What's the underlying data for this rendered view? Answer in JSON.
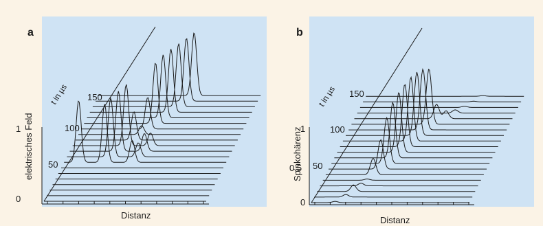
{
  "chart_data": [
    {
      "type": "line",
      "panel_label": "a",
      "xlabel": "Distanz",
      "ylabel": "elektrisches Feld",
      "depth_label": "t in µs",
      "y_ticks": [
        "0",
        "1"
      ],
      "t_ticks": [
        {
          "label": "50",
          "value": 50
        },
        {
          "label": "100",
          "value": 100
        },
        {
          "label": "150",
          "value": 150
        }
      ],
      "series": [
        {
          "t": 0,
          "peaks": [
            {
              "pos": 0.18,
              "amp": 0.0
            }
          ]
        },
        {
          "t": 10,
          "peaks": [
            {
              "pos": 0.18,
              "amp": 0.0
            }
          ]
        },
        {
          "t": 20,
          "peaks": [
            {
              "pos": 0.17,
              "amp": 0.0
            }
          ]
        },
        {
          "t": 30,
          "peaks": [
            {
              "pos": 0.16,
              "amp": 0.0
            }
          ]
        },
        {
          "t": 40,
          "peaks": [
            {
              "pos": 0.15,
              "amp": 0.0
            }
          ]
        },
        {
          "t": 50,
          "peaks": [
            {
              "pos": 0.14,
              "amp": 0.0
            }
          ]
        },
        {
          "t": 60,
          "peaks": [
            {
              "pos": 0.13,
              "amp": 0.0
            }
          ]
        },
        {
          "t": 70,
          "peaks": [
            {
              "pos": 0.09,
              "amp": 0.98
            },
            {
              "pos": 0.25,
              "amp": 0.92
            },
            {
              "pos": 0.42,
              "amp": 0.35
            }
          ]
        },
        {
          "t": 80,
          "peaks": [
            {
              "pos": 0.27,
              "amp": 0.93
            },
            {
              "pos": 0.44,
              "amp": 0.22
            }
          ]
        },
        {
          "t": 90,
          "peaks": [
            {
              "pos": 0.3,
              "amp": 0.95
            },
            {
              "pos": 0.46,
              "amp": 0.28
            }
          ]
        },
        {
          "t": 100,
          "peaks": [
            {
              "pos": 0.33,
              "amp": 0.97
            },
            {
              "pos": 0.48,
              "amp": 0.2
            }
          ]
        },
        {
          "t": 110,
          "peaks": [
            {
              "pos": 0.36,
              "amp": 0.45
            }
          ]
        },
        {
          "t": 120,
          "peaks": [
            {
              "pos": 0.39,
              "amp": 0.14
            }
          ]
        },
        {
          "t": 130,
          "peaks": [
            {
              "pos": 0.41,
              "amp": 0.5
            }
          ]
        },
        {
          "t": 140,
          "peaks": [
            {
              "pos": 0.44,
              "amp": 0.96
            }
          ]
        },
        {
          "t": 150,
          "peaks": [
            {
              "pos": 0.47,
              "amp": 1.0
            }
          ]
        },
        {
          "t": 160,
          "peaks": [
            {
              "pos": 0.5,
              "amp": 1.0
            }
          ]
        },
        {
          "t": 170,
          "peaks": [
            {
              "pos": 0.53,
              "amp": 1.0
            }
          ]
        },
        {
          "t": 180,
          "peaks": [
            {
              "pos": 0.56,
              "amp": 1.0
            }
          ]
        },
        {
          "t": 190,
          "peaks": [
            {
              "pos": 0.59,
              "amp": 1.0
            }
          ]
        }
      ]
    },
    {
      "type": "line",
      "panel_label": "b",
      "xlabel": "Distanz",
      "ylabel": "Spinkohärenz",
      "depth_label": "t in µs",
      "y_ticks": [
        "0",
        "0,5",
        "1"
      ],
      "t_ticks": [
        {
          "label": "50",
          "value": 50
        },
        {
          "label": "100",
          "value": 100
        },
        {
          "label": "150",
          "value": 150
        }
      ],
      "series": [
        {
          "t": 0,
          "peaks": [
            {
              "pos": 0.15,
              "amp": 0.02
            }
          ]
        },
        {
          "t": 10,
          "peaks": [
            {
              "pos": 0.2,
              "amp": 0.04
            }
          ]
        },
        {
          "t": 20,
          "peaks": [
            {
              "pos": 0.23,
              "amp": 0.1
            }
          ]
        },
        {
          "t": 30,
          "peaks": [
            {
              "pos": 0.26,
              "amp": 0.04
            }
          ]
        },
        {
          "t": 40,
          "peaks": [
            {
              "pos": 0.28,
              "amp": 0.02
            }
          ]
        },
        {
          "t": 50,
          "peaks": [
            {
              "pos": 0.3,
              "amp": 0.25
            }
          ]
        },
        {
          "t": 60,
          "peaks": [
            {
              "pos": 0.33,
              "amp": 0.45
            }
          ]
        },
        {
          "t": 70,
          "peaks": [
            {
              "pos": 0.35,
              "amp": 0.7
            }
          ]
        },
        {
          "t": 80,
          "peaks": [
            {
              "pos": 0.37,
              "amp": 0.85
            }
          ]
        },
        {
          "t": 90,
          "peaks": [
            {
              "pos": 0.39,
              "amp": 0.92
            }
          ]
        },
        {
          "t": 100,
          "peaks": [
            {
              "pos": 0.41,
              "amp": 0.96
            }
          ]
        },
        {
          "t": 110,
          "peaks": [
            {
              "pos": 0.43,
              "amp": 0.98
            }
          ]
        },
        {
          "t": 120,
          "peaks": [
            {
              "pos": 0.45,
              "amp": 0.97
            }
          ]
        },
        {
          "t": 130,
          "peaks": [
            {
              "pos": 0.47,
              "amp": 0.93
            }
          ]
        },
        {
          "t": 140,
          "peaks": [
            {
              "pos": 0.49,
              "amp": 0.85
            }
          ]
        },
        {
          "t": 150,
          "peaks": [
            {
              "pos": 0.52,
              "amp": 0.22
            },
            {
              "pos": 0.58,
              "amp": 0.12
            }
          ]
        },
        {
          "t": 160,
          "peaks": [
            {
              "pos": 0.62,
              "amp": 0.05
            }
          ]
        },
        {
          "t": 170,
          "peaks": [
            {
              "pos": 0.66,
              "amp": 0.02
            }
          ]
        },
        {
          "t": 180,
          "peaks": [
            {
              "pos": 0.7,
              "amp": 0.01
            }
          ]
        },
        {
          "t": 190,
          "peaks": [
            {
              "pos": 0.74,
              "amp": 0.01
            }
          ]
        }
      ]
    }
  ]
}
